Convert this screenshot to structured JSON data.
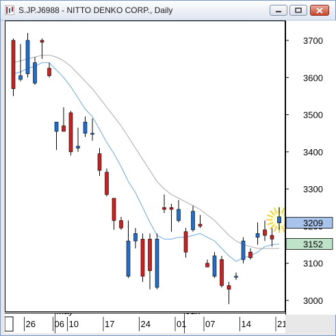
{
  "window": {
    "title": "S.JP.J6988 - NITTO DENKO CORP., Daily"
  },
  "chart_data": {
    "type": "candlestick",
    "title": "S.JP.J6988 - NITTO DENKO CORP., Daily",
    "ylim": [
      2985,
      3725
    ],
    "yticks": [
      3000,
      3100,
      3200,
      3300,
      3400,
      3500,
      3600,
      3700
    ],
    "price_labels": [
      {
        "text": "3209",
        "value": 3209,
        "color": "#a9c4ec"
      },
      {
        "text": "3152",
        "value": 3152,
        "color": "#bfe3c9"
      }
    ],
    "month_labels": [
      {
        "text": "May",
        "index": 6
      },
      {
        "text": "Jun",
        "index": 24
      }
    ],
    "date_labels": [
      {
        "text": "26",
        "index": 2
      },
      {
        "text": "06",
        "index": 6
      },
      {
        "text": "10",
        "index": 8
      },
      {
        "text": "17",
        "index": 13
      },
      {
        "text": "24",
        "index": 18
      },
      {
        "text": "01",
        "index": 23
      },
      {
        "text": "07",
        "index": 27
      },
      {
        "text": "14",
        "index": 32
      },
      {
        "text": "21",
        "index": 37
      }
    ],
    "candles": [
      {
        "o": 3700,
        "h": 3705,
        "l": 3550,
        "c": 3570
      },
      {
        "o": 3595,
        "h": 3690,
        "l": 3590,
        "c": 3605
      },
      {
        "o": 3610,
        "h": 3720,
        "l": 3600,
        "c": 3700
      },
      {
        "o": 3585,
        "h": 3655,
        "l": 3580,
        "c": 3640
      },
      {
        "o": 3700,
        "h": 3705,
        "l": 3650,
        "c": 3695
      },
      {
        "o": 3625,
        "h": 3640,
        "l": 3600,
        "c": 3605
      },
      {
        "o": 3455,
        "h": 3480,
        "l": 3405,
        "c": 3480
      },
      {
        "o": 3470,
        "h": 3520,
        "l": 3455,
        "c": 3455
      },
      {
        "o": 3505,
        "h": 3510,
        "l": 3390,
        "c": 3400
      },
      {
        "o": 3410,
        "h": 3465,
        "l": 3400,
        "c": 3415
      },
      {
        "o": 3450,
        "h": 3495,
        "l": 3440,
        "c": 3480
      },
      {
        "o": 3450,
        "h": 3490,
        "l": 3430,
        "c": 3450
      },
      {
        "o": 3395,
        "h": 3410,
        "l": 3335,
        "c": 3350
      },
      {
        "o": 3345,
        "h": 3355,
        "l": 3280,
        "c": 3285
      },
      {
        "o": 3275,
        "h": 3275,
        "l": 3190,
        "c": 3215
      },
      {
        "o": 3215,
        "h": 3225,
        "l": 3190,
        "c": 3195
      },
      {
        "o": 3065,
        "h": 3215,
        "l": 3060,
        "c": 3160
      },
      {
        "o": 3160,
        "h": 3195,
        "l": 3140,
        "c": 3180
      },
      {
        "o": 3165,
        "h": 3180,
        "l": 3050,
        "c": 3065
      },
      {
        "o": 3165,
        "h": 3180,
        "l": 3030,
        "c": 3080
      },
      {
        "o": 3035,
        "h": 3180,
        "l": 3030,
        "c": 3165
      },
      {
        "o": 3250,
        "h": 3285,
        "l": 3235,
        "c": 3245
      },
      {
        "o": 3250,
        "h": 3260,
        "l": 3185,
        "c": 3245
      },
      {
        "o": 3215,
        "h": 3270,
        "l": 3210,
        "c": 3245
      },
      {
        "o": 3185,
        "h": 3195,
        "l": 3115,
        "c": 3130
      },
      {
        "o": 3190,
        "h": 3255,
        "l": 3185,
        "c": 3240
      },
      {
        "o": 3205,
        "h": 3230,
        "l": 3195,
        "c": 3200
      },
      {
        "o": 3100,
        "h": 3110,
        "l": 3090,
        "c": 3090
      },
      {
        "o": 3065,
        "h": 3130,
        "l": 3060,
        "c": 3120
      },
      {
        "o": 3110,
        "h": 3120,
        "l": 3035,
        "c": 3040
      },
      {
        "o": 3040,
        "h": 3050,
        "l": 2990,
        "c": 3030
      },
      {
        "o": 3065,
        "h": 3075,
        "l": 3055,
        "c": 3065
      },
      {
        "o": 3110,
        "h": 3170,
        "l": 3100,
        "c": 3160
      },
      {
        "o": 3130,
        "h": 3140,
        "l": 3110,
        "c": 3115
      },
      {
        "o": 3170,
        "h": 3210,
        "l": 3150,
        "c": 3180
      },
      {
        "o": 3190,
        "h": 3215,
        "l": 3160,
        "c": 3175
      },
      {
        "o": 3175,
        "h": 3195,
        "l": 3145,
        "c": 3165
      },
      {
        "o": 3209,
        "h": 3250,
        "l": 3190,
        "c": 3225
      }
    ],
    "moving_averages": [
      {
        "name": "",
        "color": "#6aa6e8",
        "values": [
          3610,
          3615,
          3625,
          3630,
          3640,
          3640,
          3620,
          3600,
          3575,
          3545,
          3515,
          3495,
          3460,
          3425,
          3395,
          3360,
          3320,
          3290,
          3250,
          3210,
          3175,
          3165,
          3165,
          3170,
          3170,
          3175,
          3180,
          3170,
          3160,
          3140,
          3120,
          3105,
          3115,
          3120,
          3130,
          3145,
          3150,
          3152
        ]
      },
      {
        "name": "",
        "color": "#a8a8a8",
        "values": [
          3640,
          3645,
          3650,
          3655,
          3660,
          3660,
          3655,
          3645,
          3630,
          3610,
          3590,
          3570,
          3545,
          3520,
          3495,
          3470,
          3440,
          3410,
          3380,
          3350,
          3320,
          3300,
          3285,
          3275,
          3265,
          3255,
          3245,
          3230,
          3215,
          3195,
          3175,
          3160,
          3150,
          3145,
          3140,
          3140,
          3140,
          3140
        ]
      }
    ],
    "bull_color": "#1f6fd1",
    "bear_color": "#d11f1f",
    "legend": "none",
    "grid": false
  }
}
